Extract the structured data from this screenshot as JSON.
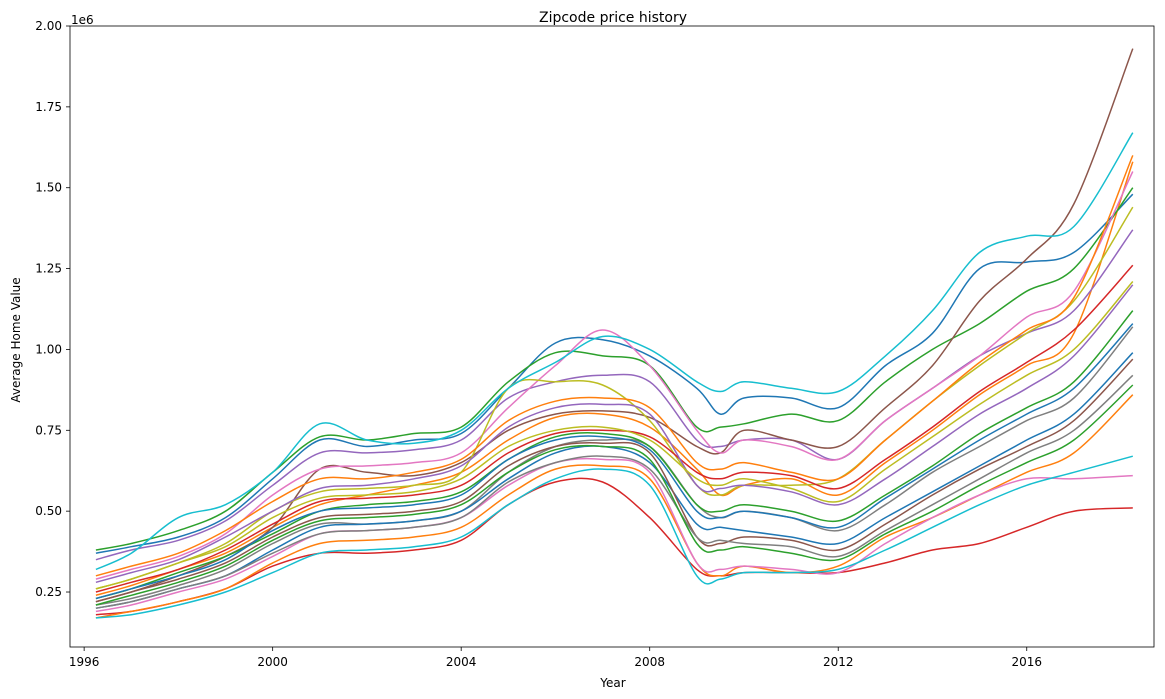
{
  "chart_data": {
    "type": "line",
    "title": "Zipcode price history",
    "xlabel": "Year",
    "ylabel": "Average Home Value",
    "y_offset_label": "1e6",
    "xlim": [
      1995.7,
      2018.7
    ],
    "ylim": [
      0.08,
      2.0
    ],
    "x_ticks": [
      1996,
      2000,
      2004,
      2008,
      2012,
      2016
    ],
    "y_ticks": [
      0.25,
      0.5,
      0.75,
      1.0,
      1.25,
      1.5,
      1.75,
      2.0
    ],
    "y_tick_labels": [
      "0.25",
      "0.50",
      "0.75",
      "1.00",
      "1.25",
      "1.50",
      "1.75",
      "2.00"
    ],
    "grid": false,
    "legend": "none",
    "palette": [
      "#1f77b4",
      "#ff7f0e",
      "#2ca02c",
      "#d62728",
      "#9467bd",
      "#8c564b",
      "#e377c2",
      "#7f7f7f",
      "#bcbd22",
      "#17becf"
    ],
    "x": [
      1996.25,
      1997,
      1998,
      1999,
      2000,
      2001,
      2002,
      2003,
      2004,
      2005,
      2006,
      2007,
      2008,
      2009,
      2009.5,
      2010,
      2011,
      2012,
      2013,
      2014,
      2015,
      2016,
      2017,
      2018.25
    ],
    "series": [
      {
        "values": [
          0.37,
          0.39,
          0.42,
          0.48,
          0.6,
          0.72,
          0.7,
          0.72,
          0.74,
          0.88,
          1.02,
          1.03,
          0.98,
          0.88,
          0.8,
          0.85,
          0.85,
          0.82,
          0.95,
          1.05,
          1.25,
          1.27,
          1.3,
          1.48
        ]
      },
      {
        "values": [
          0.24,
          0.27,
          0.32,
          0.37,
          0.45,
          0.52,
          0.55,
          0.58,
          0.62,
          0.72,
          0.79,
          0.8,
          0.76,
          0.63,
          0.55,
          0.58,
          0.6,
          0.55,
          0.65,
          0.75,
          0.86,
          0.95,
          1.05,
          1.58
        ]
      },
      {
        "values": [
          0.38,
          0.4,
          0.44,
          0.5,
          0.62,
          0.73,
          0.72,
          0.74,
          0.76,
          0.9,
          0.99,
          0.98,
          0.95,
          0.76,
          0.76,
          0.77,
          0.8,
          0.78,
          0.9,
          1.0,
          1.08,
          1.18,
          1.25,
          1.5
        ]
      },
      {
        "values": [
          0.18,
          0.19,
          0.22,
          0.26,
          0.33,
          0.37,
          0.37,
          0.38,
          0.41,
          0.52,
          0.59,
          0.59,
          0.48,
          0.32,
          0.3,
          0.31,
          0.31,
          0.31,
          0.34,
          0.38,
          0.4,
          0.45,
          0.5,
          0.51
        ]
      },
      {
        "values": [
          0.35,
          0.38,
          0.41,
          0.47,
          0.58,
          0.68,
          0.68,
          0.69,
          0.72,
          0.85,
          0.9,
          0.92,
          0.9,
          0.72,
          0.7,
          0.72,
          0.72,
          0.66,
          0.78,
          0.88,
          0.98,
          1.05,
          1.12,
          1.37
        ]
      },
      {
        "values": [
          0.22,
          0.25,
          0.3,
          0.36,
          0.45,
          0.63,
          0.62,
          0.61,
          0.65,
          0.75,
          0.8,
          0.81,
          0.79,
          0.7,
          0.68,
          0.75,
          0.72,
          0.7,
          0.82,
          0.95,
          1.15,
          1.28,
          1.45,
          1.93
        ]
      },
      {
        "values": [
          0.29,
          0.32,
          0.36,
          0.43,
          0.55,
          0.63,
          0.64,
          0.65,
          0.68,
          0.82,
          0.95,
          1.06,
          0.95,
          0.75,
          0.68,
          0.72,
          0.7,
          0.66,
          0.78,
          0.88,
          0.98,
          1.1,
          1.18,
          1.55
        ]
      },
      {
        "values": [
          0.21,
          0.23,
          0.27,
          0.32,
          0.4,
          0.46,
          0.46,
          0.47,
          0.5,
          0.62,
          0.7,
          0.72,
          0.7,
          0.52,
          0.48,
          0.5,
          0.48,
          0.44,
          0.52,
          0.62,
          0.7,
          0.78,
          0.85,
          1.07
        ]
      },
      {
        "values": [
          0.26,
          0.29,
          0.34,
          0.4,
          0.5,
          0.56,
          0.57,
          0.58,
          0.62,
          0.88,
          0.9,
          0.89,
          0.78,
          0.58,
          0.55,
          0.58,
          0.58,
          0.6,
          0.72,
          0.84,
          0.95,
          1.05,
          1.15,
          1.44
        ]
      },
      {
        "values": [
          0.32,
          0.37,
          0.48,
          0.52,
          0.62,
          0.77,
          0.72,
          0.71,
          0.75,
          0.88,
          0.96,
          1.04,
          1.0,
          0.9,
          0.87,
          0.9,
          0.88,
          0.87,
          0.98,
          1.12,
          1.3,
          1.35,
          1.38,
          1.67
        ]
      },
      {
        "values": [
          0.2,
          0.22,
          0.26,
          0.3,
          0.38,
          0.45,
          0.46,
          0.47,
          0.5,
          0.6,
          0.68,
          0.7,
          0.65,
          0.46,
          0.45,
          0.44,
          0.42,
          0.4,
          0.48,
          0.56,
          0.64,
          0.72,
          0.8,
          0.99
        ]
      },
      {
        "values": [
          0.17,
          0.19,
          0.22,
          0.26,
          0.34,
          0.4,
          0.41,
          0.42,
          0.45,
          0.55,
          0.63,
          0.64,
          0.6,
          0.34,
          0.3,
          0.33,
          0.31,
          0.33,
          0.42,
          0.48,
          0.55,
          0.62,
          0.68,
          0.86
        ]
      },
      {
        "values": [
          0.23,
          0.26,
          0.31,
          0.36,
          0.43,
          0.5,
          0.52,
          0.53,
          0.56,
          0.66,
          0.73,
          0.74,
          0.7,
          0.52,
          0.5,
          0.52,
          0.5,
          0.47,
          0.55,
          0.64,
          0.74,
          0.82,
          0.9,
          1.12
        ]
      },
      {
        "values": [
          0.25,
          0.28,
          0.32,
          0.38,
          0.46,
          0.53,
          0.54,
          0.55,
          0.58,
          0.68,
          0.74,
          0.75,
          0.73,
          0.62,
          0.6,
          0.62,
          0.61,
          0.57,
          0.66,
          0.76,
          0.87,
          0.96,
          1.06,
          1.26
        ]
      },
      {
        "values": [
          0.28,
          0.31,
          0.35,
          0.42,
          0.5,
          0.57,
          0.58,
          0.6,
          0.64,
          0.76,
          0.82,
          0.83,
          0.8,
          0.58,
          0.57,
          0.58,
          0.56,
          0.52,
          0.6,
          0.7,
          0.8,
          0.88,
          0.98,
          1.2
        ]
      },
      {
        "values": [
          0.22,
          0.25,
          0.29,
          0.34,
          0.42,
          0.48,
          0.49,
          0.5,
          0.53,
          0.64,
          0.7,
          0.71,
          0.68,
          0.42,
          0.4,
          0.42,
          0.41,
          0.38,
          0.46,
          0.55,
          0.63,
          0.7,
          0.78,
          0.97
        ]
      },
      {
        "values": [
          0.19,
          0.21,
          0.25,
          0.29,
          0.36,
          0.43,
          0.44,
          0.45,
          0.48,
          0.58,
          0.65,
          0.66,
          0.62,
          0.34,
          0.32,
          0.33,
          0.32,
          0.31,
          0.4,
          0.48,
          0.55,
          0.6,
          0.6,
          0.61
        ]
      },
      {
        "values": [
          0.2,
          0.22,
          0.26,
          0.3,
          0.37,
          0.43,
          0.44,
          0.45,
          0.48,
          0.59,
          0.65,
          0.67,
          0.63,
          0.42,
          0.41,
          0.4,
          0.39,
          0.36,
          0.44,
          0.52,
          0.6,
          0.68,
          0.75,
          0.92
        ]
      },
      {
        "values": [
          0.26,
          0.29,
          0.34,
          0.39,
          0.48,
          0.54,
          0.55,
          0.56,
          0.6,
          0.7,
          0.75,
          0.76,
          0.72,
          0.6,
          0.58,
          0.6,
          0.57,
          0.53,
          0.63,
          0.73,
          0.83,
          0.92,
          1.0,
          1.21
        ]
      },
      {
        "values": [
          0.17,
          0.18,
          0.21,
          0.25,
          0.31,
          0.37,
          0.38,
          0.39,
          0.42,
          0.52,
          0.6,
          0.63,
          0.58,
          0.3,
          0.29,
          0.31,
          0.31,
          0.32,
          0.38,
          0.45,
          0.52,
          0.58,
          0.62,
          0.67
        ]
      },
      {
        "values": [
          0.23,
          0.26,
          0.3,
          0.35,
          0.44,
          0.5,
          0.51,
          0.52,
          0.55,
          0.66,
          0.72,
          0.73,
          0.69,
          0.5,
          0.48,
          0.5,
          0.48,
          0.45,
          0.54,
          0.63,
          0.72,
          0.8,
          0.88,
          1.08
        ]
      },
      {
        "values": [
          0.3,
          0.33,
          0.37,
          0.44,
          0.53,
          0.6,
          0.6,
          0.62,
          0.66,
          0.78,
          0.84,
          0.85,
          0.82,
          0.65,
          0.63,
          0.65,
          0.62,
          0.6,
          0.72,
          0.84,
          0.96,
          1.06,
          1.16,
          1.6
        ]
      },
      {
        "values": [
          0.21,
          0.24,
          0.28,
          0.33,
          0.41,
          0.47,
          0.48,
          0.49,
          0.52,
          0.62,
          0.69,
          0.7,
          0.66,
          0.4,
          0.38,
          0.39,
          0.37,
          0.35,
          0.43,
          0.5,
          0.58,
          0.65,
          0.72,
          0.89
        ]
      }
    ]
  }
}
